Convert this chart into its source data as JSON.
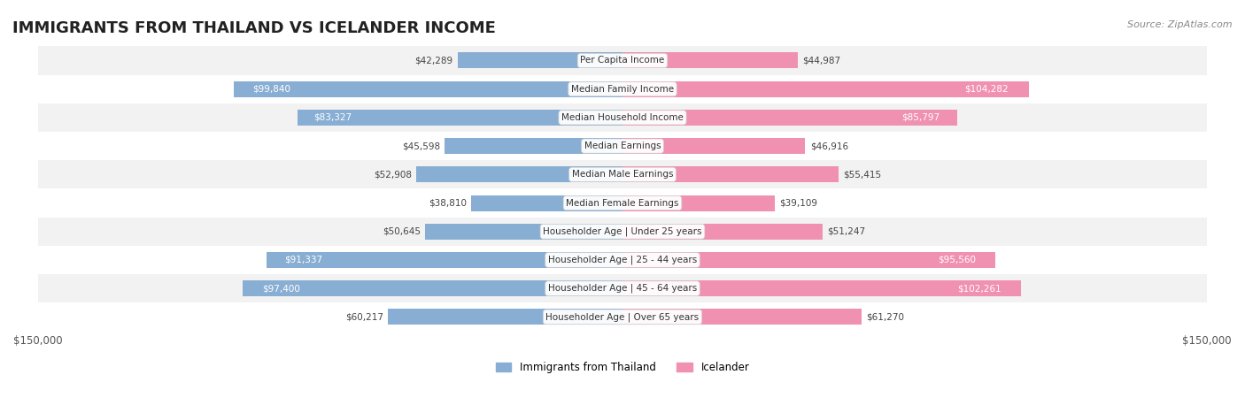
{
  "title": "IMMIGRANTS FROM THAILAND VS ICELANDER INCOME",
  "source": "Source: ZipAtlas.com",
  "categories": [
    "Per Capita Income",
    "Median Family Income",
    "Median Household Income",
    "Median Earnings",
    "Median Male Earnings",
    "Median Female Earnings",
    "Householder Age | Under 25 years",
    "Householder Age | 25 - 44 years",
    "Householder Age | 45 - 64 years",
    "Householder Age | Over 65 years"
  ],
  "thailand_values": [
    42289,
    99840,
    83327,
    45598,
    52908,
    38810,
    50645,
    91337,
    97400,
    60217
  ],
  "icelander_values": [
    44987,
    104282,
    85797,
    46916,
    55415,
    39109,
    51247,
    95560,
    102261,
    61270
  ],
  "thailand_labels": [
    "$42,289",
    "$99,840",
    "$83,327",
    "$45,598",
    "$52,908",
    "$38,810",
    "$50,645",
    "$91,337",
    "$97,400",
    "$60,217"
  ],
  "icelander_labels": [
    "$44,987",
    "$104,282",
    "$85,797",
    "$46,916",
    "$55,415",
    "$39,109",
    "$51,247",
    "$95,560",
    "$102,261",
    "$61,270"
  ],
  "thailand_color": "#89aed4",
  "icelander_color": "#f191b2",
  "thailand_color_dark": "#6b9abf",
  "icelander_color_dark": "#e8709a",
  "max_value": 150000,
  "bar_height": 0.35,
  "background_color": "#ffffff",
  "row_bg_color": "#f2f2f2",
  "row_bg_color_alt": "#ffffff"
}
